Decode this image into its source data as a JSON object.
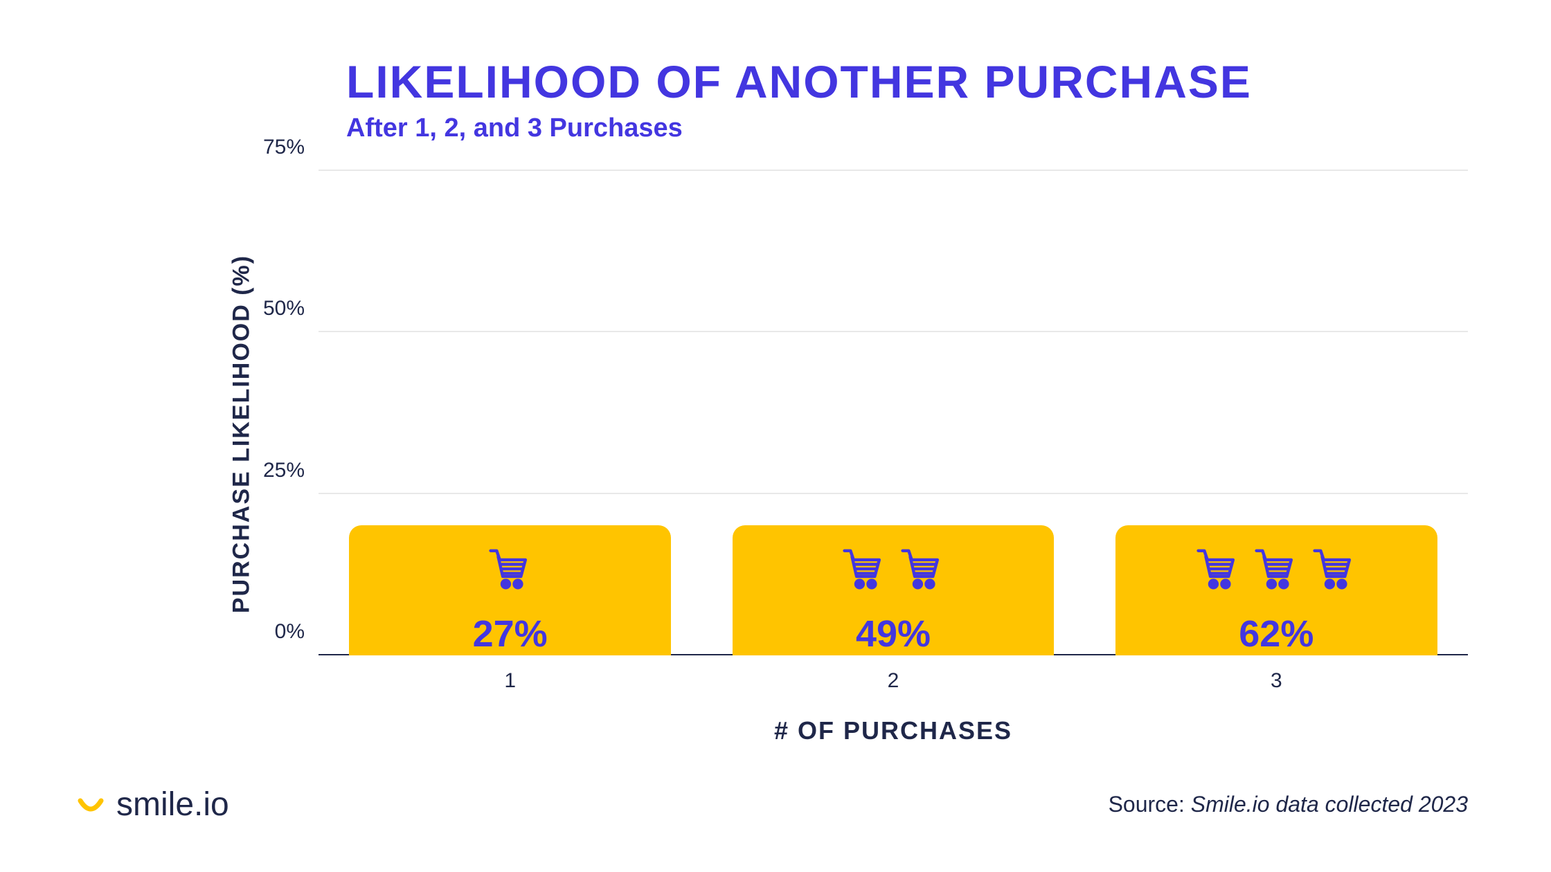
{
  "title": "LIKELIHOOD OF ANOTHER PURCHASE",
  "subtitle": "After 1, 2, and 3 Purchases",
  "chart": {
    "type": "bar",
    "y_axis_label": "PURCHASE LIKELIHOOD (%)",
    "x_axis_label": "# OF PURCHASES",
    "ylim": [
      0,
      75
    ],
    "y_ticks": [
      "0%",
      "25%",
      "50%",
      "75%"
    ],
    "y_tick_values": [
      0,
      25,
      50,
      75
    ],
    "categories": [
      "1",
      "2",
      "3"
    ],
    "values": [
      27,
      49,
      62
    ],
    "value_labels": [
      "27%",
      "49%",
      "62%"
    ],
    "cart_counts": [
      1,
      2,
      3
    ],
    "bar_color": "#ffc400",
    "bar_border_radius": 18,
    "title_color": "#4336e0",
    "subtitle_color": "#4336e0",
    "value_label_color": "#4336e0",
    "axis_text_color": "#1f2749",
    "grid_color": "#e8e8e8",
    "baseline_color": "#1f2749",
    "background_color": "#ffffff",
    "title_fontsize": 66,
    "subtitle_fontsize": 38,
    "axis_label_fontsize": 36,
    "tick_fontsize": 30,
    "value_fontsize": 54,
    "icon_stroke_color": "#4336e0",
    "icon_size": 70
  },
  "logo": {
    "text": "smile.io",
    "smile_color": "#ffc400",
    "text_color": "#1f2749"
  },
  "source": {
    "prefix": "Source: ",
    "text": "Smile.io data collected 2023",
    "color": "#1f2749"
  }
}
